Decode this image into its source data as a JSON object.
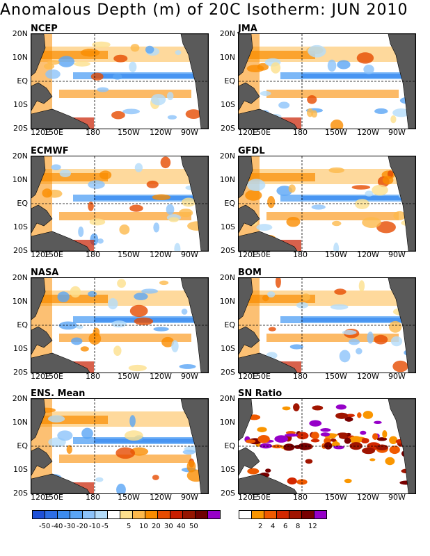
{
  "title": "Anomalous Depth (m) of 20C Isotherm: JUN 2010",
  "panels": [
    {
      "label": "NCEP"
    },
    {
      "label": "JMA"
    },
    {
      "label": "ECMWF"
    },
    {
      "label": "GFDL"
    },
    {
      "label": "NASA"
    },
    {
      "label": "BOM"
    },
    {
      "label": "ENS. Mean"
    },
    {
      "label": "SN Ratio"
    }
  ],
  "lat_labels": [
    "20N",
    "10N",
    "EQ",
    "10S",
    "20S"
  ],
  "lon_labels": [
    "120E",
    "150E",
    "180",
    "150W",
    "120W",
    "90W"
  ],
  "anomaly_legend": {
    "colors": [
      "#1e50d8",
      "#2d6ee6",
      "#3c8cf0",
      "#5aa5f5",
      "#8cc3fa",
      "#b4dcfa",
      "#ffffff",
      "#fde08c",
      "#fdb94b",
      "#fa8c00",
      "#e64b00",
      "#c81e00",
      "#961400",
      "#6e0000",
      "#9600c8"
    ],
    "labels": [
      "-50",
      "-40",
      "-30",
      "-20",
      "-10",
      "-5",
      "5",
      "10",
      "20",
      "30",
      "40",
      "50"
    ]
  },
  "sn_legend": {
    "colors": [
      "#ffffff",
      "#fa9600",
      "#f05a00",
      "#d22800",
      "#a01400",
      "#780000",
      "#9600c8"
    ],
    "labels": [
      "2",
      "4",
      "6",
      "8",
      "12"
    ]
  }
}
